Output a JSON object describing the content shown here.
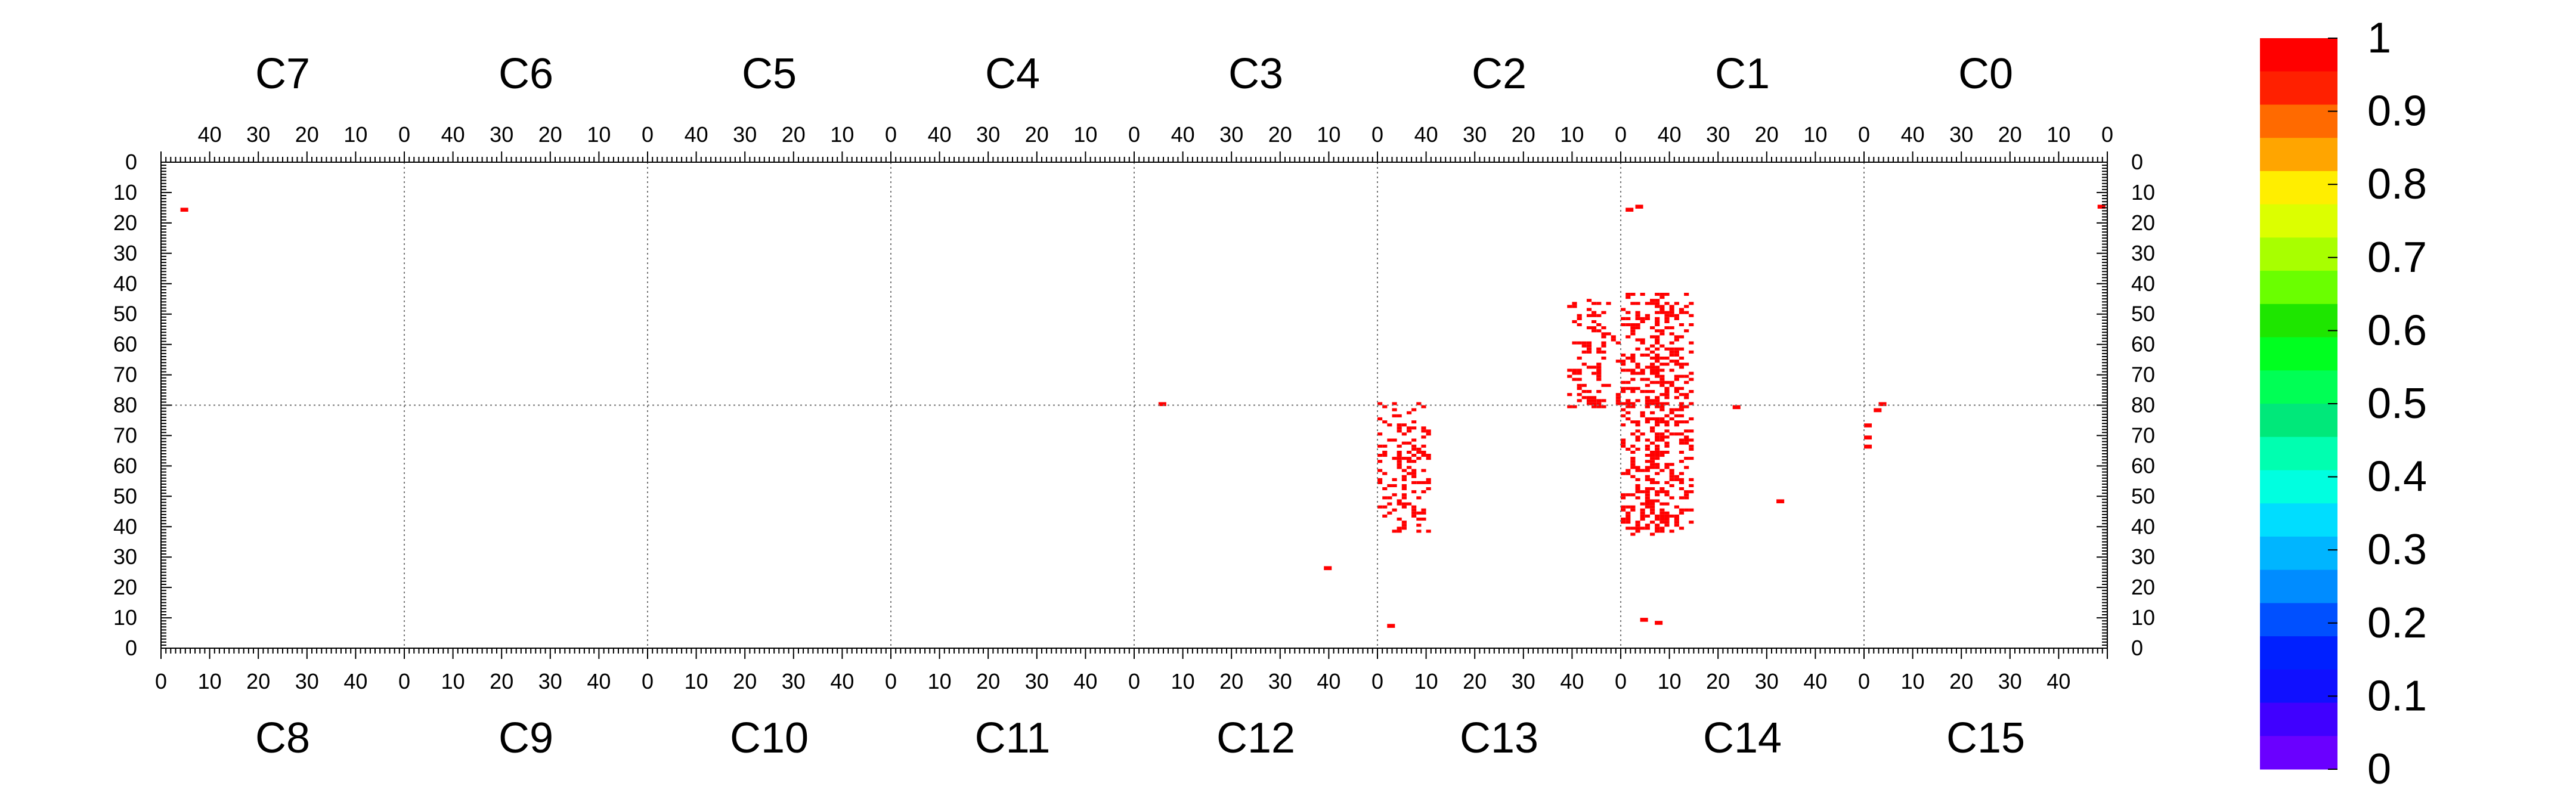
{
  "chart_data": {
    "type": "heatmap",
    "top_chips": [
      "C7",
      "C6",
      "C5",
      "C4",
      "C3",
      "C2",
      "C1",
      "C0"
    ],
    "bottom_chips": [
      "C8",
      "C9",
      "C10",
      "C11",
      "C12",
      "C13",
      "C14",
      "C15"
    ],
    "top_x_ticks": [
      "40",
      "30",
      "20",
      "10",
      "0"
    ],
    "bottom_x_ticks": [
      "0",
      "10",
      "20",
      "30",
      "40"
    ],
    "y_ticks_top_half": [
      "0",
      "10",
      "20",
      "30",
      "40",
      "50",
      "60",
      "70",
      "80"
    ],
    "y_ticks_bottom_half": [
      "70",
      "60",
      "50",
      "40",
      "30",
      "20",
      "10",
      "0"
    ],
    "colorbar": {
      "labels": [
        "1",
        "0.9",
        "0.8",
        "0.7",
        "0.6",
        "0.5",
        "0.4",
        "0.3",
        "0.2",
        "0.1",
        "0"
      ],
      "range": [
        0,
        1
      ],
      "colors": [
        "#ff0000",
        "#ff2000",
        "#ff6a00",
        "#ffa500",
        "#ffee00",
        "#dcff00",
        "#a8ff00",
        "#6aff00",
        "#1ee600",
        "#00ff20",
        "#00ff55",
        "#00e87a",
        "#00ffb0",
        "#00ffe0",
        "#00ddff",
        "#00b5ff",
        "#008cff",
        "#0050ff",
        "#0020ff",
        "#1010ff",
        "#4000ff",
        "#6a00ff"
      ]
    },
    "hit_value": 1,
    "hit_color": "#ff0000",
    "grid": "dotted lines at chip boundaries and at the top/bottom half boundary",
    "hits": [
      {
        "chip": "C7",
        "col": 45,
        "row": 15
      },
      {
        "chip": "C1",
        "col": 48,
        "row": 15
      },
      {
        "chip": "C1",
        "col": 46,
        "row": 14
      },
      {
        "chip": "C0",
        "col": 1,
        "row": 14
      },
      {
        "chip": "C12",
        "col": 5,
        "row": 80
      },
      {
        "chip": "C1",
        "col": 26,
        "row": 80
      },
      {
        "chip": "C15",
        "col": 3,
        "row": 80
      },
      {
        "chip": "C15",
        "col": 0,
        "row": 73
      },
      {
        "chip": "C15",
        "col": 0,
        "row": 69
      },
      {
        "chip": "C15",
        "col": 0,
        "row": 66
      },
      {
        "chip": "C15",
        "col": 2,
        "row": 78
      },
      {
        "chip": "C12",
        "col": 39,
        "row": 26
      },
      {
        "chip": "C14",
        "col": 32,
        "row": 48
      },
      {
        "chip": "C13",
        "col": 2,
        "row": 7
      },
      {
        "chip": "C14",
        "col": 4,
        "row": 9
      },
      {
        "chip": "C14",
        "col": 7,
        "row": 8
      }
    ],
    "clusters": [
      {
        "chip": "C2",
        "col_min": 0,
        "col_max": 10,
        "row_min": 45,
        "row_max": 80,
        "density": 0.35
      },
      {
        "chip": "C1",
        "col_min": 35,
        "col_max": 49,
        "row_min": 43,
        "row_max": 80,
        "density": 0.5
      },
      {
        "chip": "C13",
        "col_min": 0,
        "col_max": 10,
        "row_min": 38,
        "row_max": 80,
        "density": 0.35
      },
      {
        "chip": "C14",
        "col_min": 0,
        "col_max": 14,
        "row_min": 37,
        "row_max": 80,
        "density": 0.5
      }
    ]
  }
}
